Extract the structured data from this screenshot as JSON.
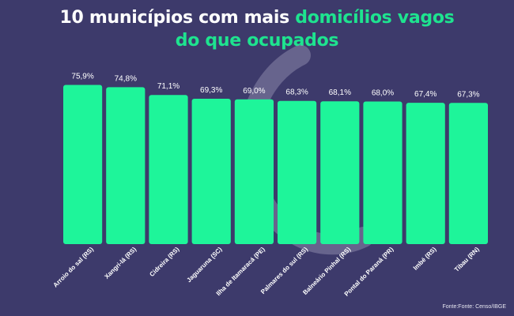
{
  "title": {
    "line1_prefix": "10 municípios com mais ",
    "line1_highlight": "domicílios vagos",
    "line2_highlight": "do que ocupados"
  },
  "source": "Fonte:Fonte: Censo/IBGE",
  "colors": {
    "background": "#3d3a6b",
    "bar": "#1ef59a",
    "highlight": "#1ee38f",
    "text": "#ffffff",
    "watermark": "#8a87aa"
  },
  "chart_data": {
    "type": "bar",
    "title": "10 municípios com mais domicílios vagos do que ocupados",
    "xlabel": "",
    "ylabel": "",
    "ylim": [
      0,
      100
    ],
    "grid": false,
    "categories": [
      "Arroio do sal (RS)",
      "Xangri-lá (RS)",
      "Cidreira (RS)",
      "Jaguaruna (SC)",
      "Ilha de Itamaracá (PE)",
      "Palmares do sul (RS)",
      "Balneário Pinhal (RS)",
      "Pontal do Paraná (PR)",
      "Imbé (RS)",
      "Tibau (RN)"
    ],
    "values": [
      75.9,
      74.8,
      71.1,
      69.3,
      69.0,
      68.3,
      68.1,
      68.0,
      67.4,
      67.3
    ],
    "value_labels": [
      "75,9%",
      "74,8%",
      "71,1%",
      "69,3%",
      "69,0%",
      "68,3%",
      "68,1%",
      "68,0%",
      "67,4%",
      "67,3%"
    ]
  }
}
